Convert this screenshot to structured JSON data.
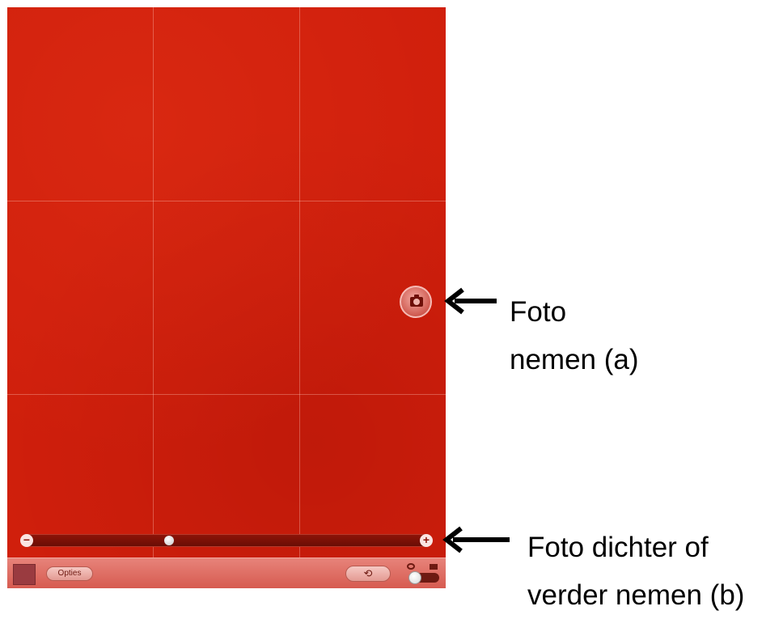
{
  "camera": {
    "shutter_icon": "camera-icon",
    "zoom": {
      "minus_label": "−",
      "plus_label": "+",
      "level": 0.35
    },
    "toolbar": {
      "options_label": "Opties",
      "switch_camera_icon": "switch-camera-icon",
      "mode_icons": [
        "camera-icon",
        "video-icon"
      ]
    }
  },
  "annotations": {
    "a": {
      "line1": "Foto",
      "line2": "nemen (a)"
    },
    "b": {
      "line1": "Foto dichter of",
      "line2": "verder nemen (b)"
    }
  },
  "colors": {
    "viewfinder": "#d01f0c",
    "toolbar": "#e07068",
    "arrow": "#000000"
  }
}
